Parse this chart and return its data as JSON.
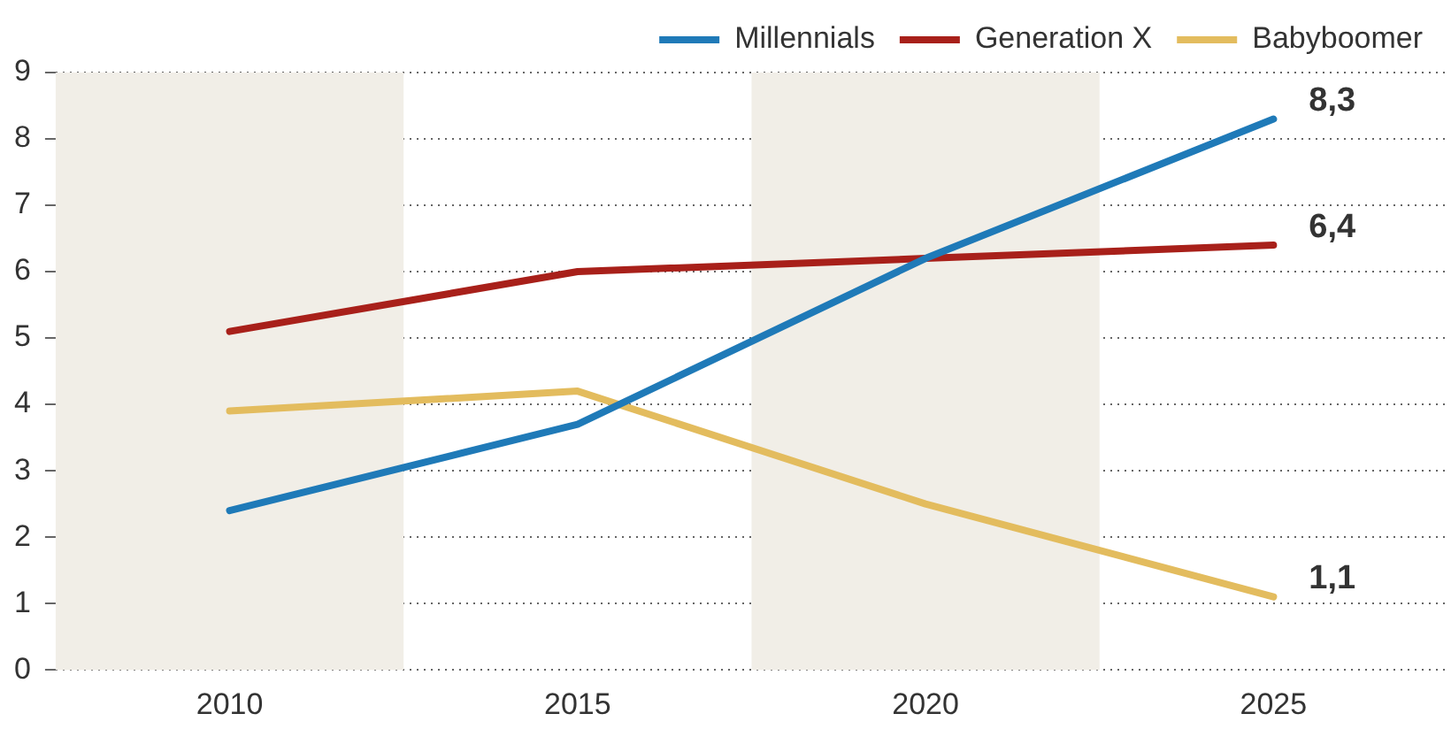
{
  "chart_data": {
    "type": "line",
    "x": [
      2010,
      2015,
      2020,
      2025
    ],
    "xlim": [
      2007.5,
      2027.5
    ],
    "xticks": [
      2010,
      2015,
      2020,
      2025
    ],
    "ylim": [
      0,
      9
    ],
    "yticks": [
      0,
      1,
      2,
      3,
      4,
      5,
      6,
      7,
      8,
      9
    ],
    "series": [
      {
        "name": "Millennials",
        "color": "#1f7ab8",
        "values": [
          2.4,
          3.7,
          6.2,
          8.3
        ],
        "value_labels": [
          null,
          null,
          null,
          "8,3"
        ]
      },
      {
        "name": "Generation X",
        "color": "#a8201a",
        "values": [
          5.1,
          6.0,
          6.2,
          6.4
        ],
        "value_labels": [
          null,
          null,
          null,
          "6,4"
        ]
      },
      {
        "name": "Babyboomer",
        "color": "#e3bc5e",
        "values": [
          3.9,
          4.2,
          2.5,
          1.1
        ],
        "value_labels": [
          null,
          null,
          null,
          "1,1"
        ]
      }
    ],
    "bands": [
      {
        "axis": "x",
        "from": 2007.5,
        "to": 2012.5,
        "color": "#f1eee7"
      },
      {
        "axis": "x",
        "from": 2017.5,
        "to": 2022.5,
        "color": "#f1eee7"
      }
    ],
    "grid": "y",
    "legend": "top right",
    "marker": "none",
    "line_style": "solid"
  }
}
